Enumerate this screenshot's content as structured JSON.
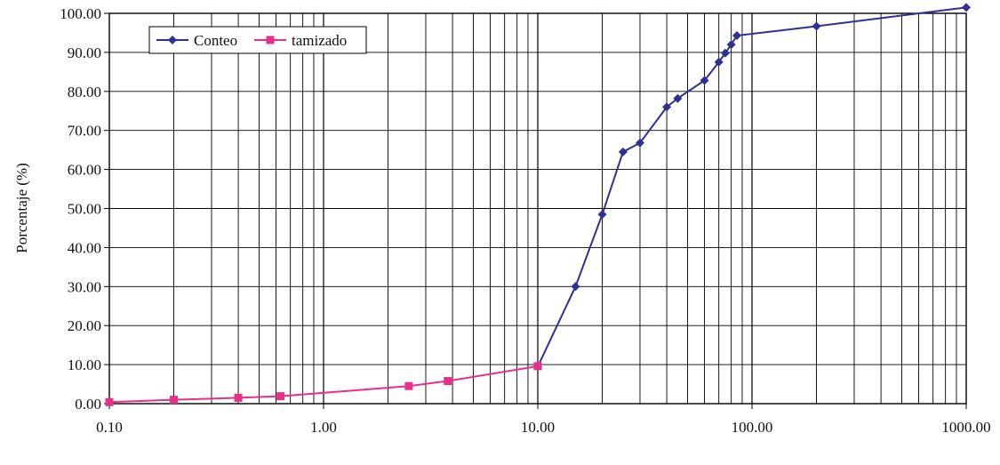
{
  "chart_data": {
    "type": "line",
    "title": "",
    "xlabel": "",
    "ylabel": "Porcentaje (%)",
    "x_scale": "log",
    "xlim": [
      0.1,
      1000
    ],
    "ylim": [
      0,
      100
    ],
    "grid": true,
    "legend_position": "top-left",
    "x_tick_labels": [
      "0.10",
      "1.00",
      "10.00",
      "100.00",
      "1000.00"
    ],
    "x_tick_values": [
      0.1,
      1,
      10,
      100,
      1000
    ],
    "y_tick_labels": [
      "0.00",
      "10.00",
      "20.00",
      "30.00",
      "40.00",
      "50.00",
      "60.00",
      "70.00",
      "80.00",
      "90.00",
      "100.00"
    ],
    "y_tick_values": [
      0,
      10,
      20,
      30,
      40,
      50,
      60,
      70,
      80,
      90,
      100
    ],
    "series": [
      {
        "name": "Conteo",
        "color": "#2e3192",
        "marker": "diamond",
        "x": [
          10,
          15,
          20,
          25,
          30,
          40,
          45,
          60,
          70,
          75,
          80,
          85,
          200,
          1000
        ],
        "y": [
          9.5,
          30,
          48.5,
          64.5,
          66.8,
          76,
          78.2,
          82.8,
          87.5,
          89.8,
          92,
          94.3,
          96.7,
          101.5
        ]
      },
      {
        "name": "tamizado",
        "color": "#e6308a",
        "marker": "square",
        "x": [
          0.1,
          0.2,
          0.4,
          0.63,
          2.5,
          3.8,
          10
        ],
        "y": [
          0.4,
          1.0,
          1.5,
          1.9,
          4.5,
          5.8,
          9.6
        ]
      }
    ]
  }
}
